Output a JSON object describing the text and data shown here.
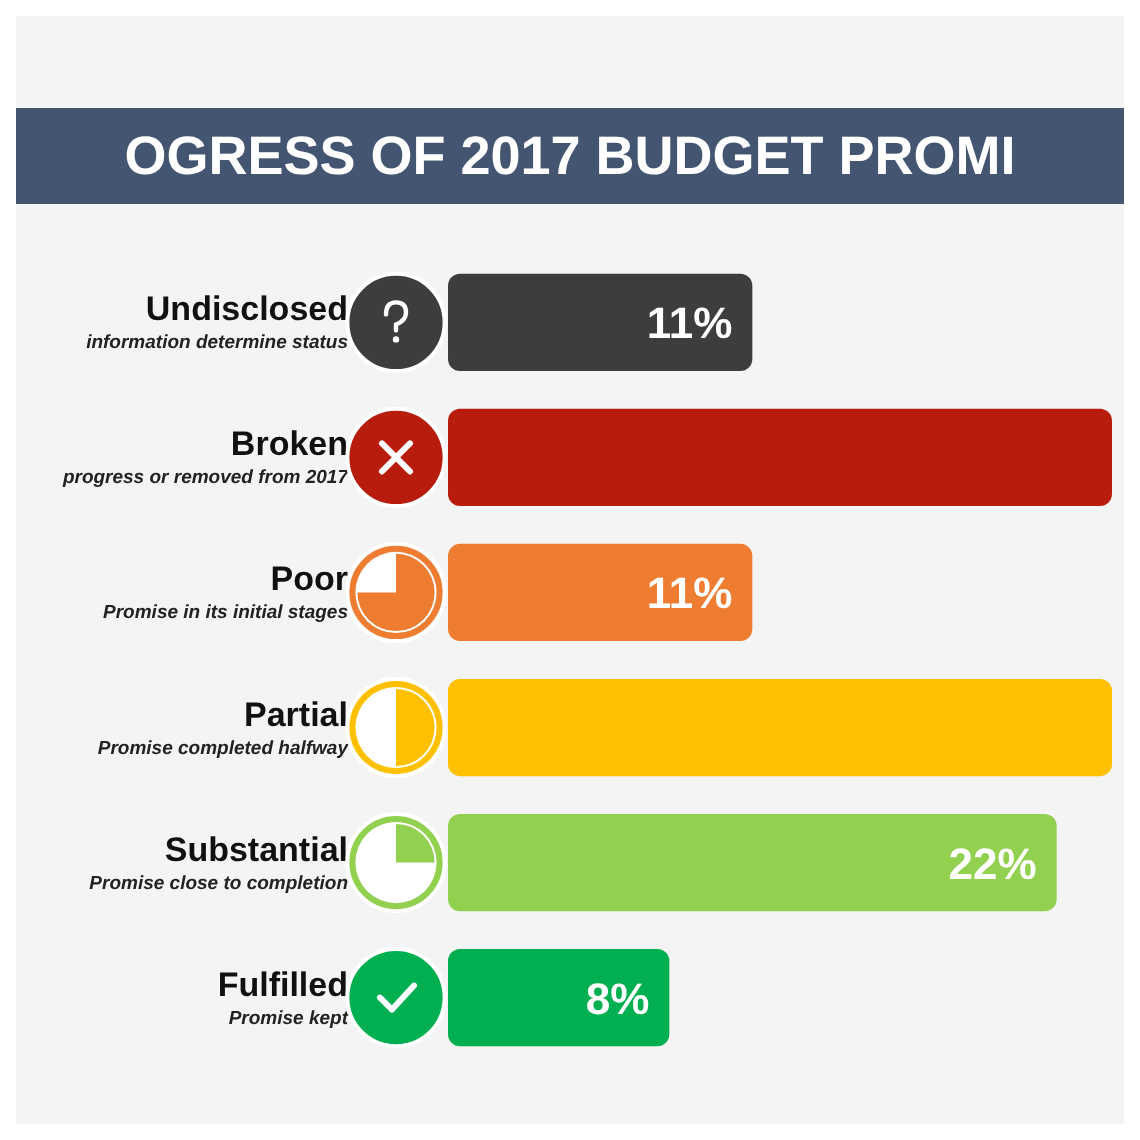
{
  "chart_data": {
    "type": "bar",
    "orientation": "horizontal",
    "title": "OGRESS OF 2017 BUDGET PROMI",
    "categories": [
      "Undisclosed\ninformation determine status",
      "Broken\nprogress or removed from 2017",
      "Poor\nPromise in its initial stages",
      "Partial\nPromise completed halfway",
      "Substantial\nPromise close to completion",
      "Fulfilled\nPromise kept"
    ],
    "values": [
      11,
      24,
      11,
      24,
      22,
      8
    ],
    "colors": [
      "#3d3d3d",
      "#b71c0c",
      "#ee7d31",
      "#ffc000",
      "#92d050",
      "#00b050"
    ],
    "value_labels": [
      "11%",
      null,
      "11%",
      null,
      "22%",
      "8%"
    ]
  }
}
